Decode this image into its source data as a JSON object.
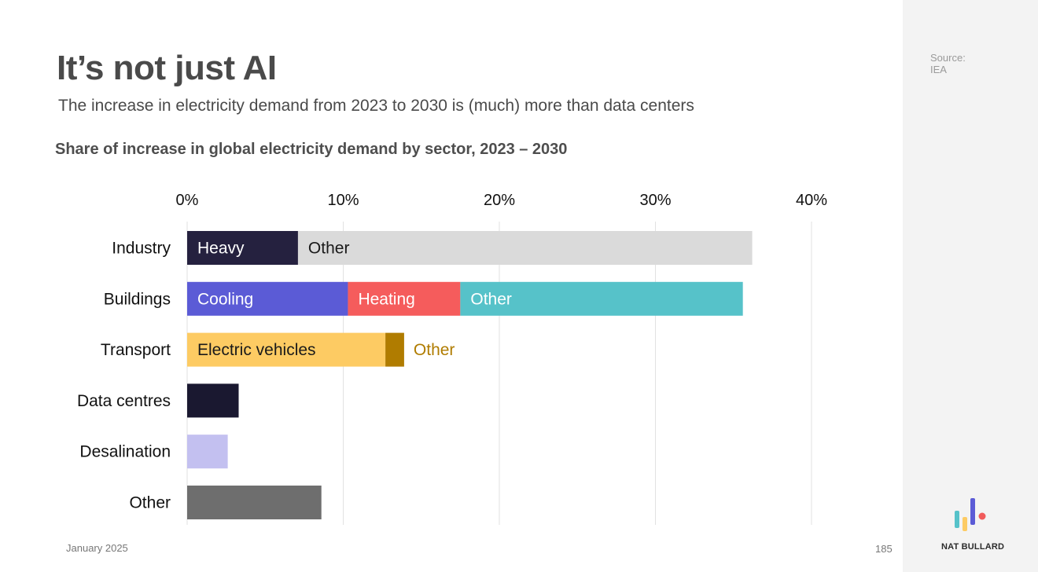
{
  "title": "It’s not just AI",
  "subtitle": "The increase in electricity demand from 2023 to 2030 is (much) more than data centers",
  "source": {
    "label": "Source:",
    "value": "IEA"
  },
  "footer": {
    "date": "January 2025",
    "page": "185"
  },
  "brand": "NAT BULLARD",
  "colors": {
    "text": "#4a4a4a",
    "grid": "#e2e2e2",
    "rail_bg": "#f3f3f3",
    "logo_blue": "#5b5bd6",
    "logo_teal": "#56c2c9",
    "logo_yellow": "#fdcb63",
    "logo_red": "#f15b5b"
  },
  "chart_data": {
    "type": "bar",
    "orientation": "horizontal",
    "stacked": true,
    "title": "Share of increase in global electricity demand by sector, 2023 – 2030",
    "xlabel": "",
    "ylabel": "",
    "xlim": [
      0,
      40
    ],
    "ticks": [
      0,
      10,
      20,
      30,
      40
    ],
    "tick_format": "percent",
    "grid": true,
    "categories": [
      "Industry",
      "Buildings",
      "Transport",
      "Data centres",
      "Desalination",
      "Other"
    ],
    "rows": [
      {
        "category": "Industry",
        "segments": [
          {
            "label": "Heavy",
            "value": 7.1,
            "color": "#25213f",
            "text_color": "#ffffff",
            "label_position": "inside"
          },
          {
            "label": "Other",
            "value": 29.1,
            "color": "#dadada",
            "text_color": "#1a1a1a",
            "label_position": "inside"
          }
        ]
      },
      {
        "category": "Buildings",
        "segments": [
          {
            "label": "Cooling",
            "value": 10.3,
            "color": "#5b5bd6",
            "text_color": "#ffffff",
            "label_position": "inside"
          },
          {
            "label": "Heating",
            "value": 7.2,
            "color": "#f55c5c",
            "text_color": "#ffffff",
            "label_position": "inside"
          },
          {
            "label": "Other",
            "value": 18.1,
            "color": "#56c2c9",
            "text_color": "#ffffff",
            "label_position": "inside"
          }
        ]
      },
      {
        "category": "Transport",
        "segments": [
          {
            "label": "Electric vehicles",
            "value": 12.7,
            "color": "#fdcb63",
            "text_color": "#1a1a1a",
            "label_position": "inside"
          },
          {
            "label": "Other",
            "value": 1.2,
            "color": "#b07c00",
            "text_color": "#b07c00",
            "label_position": "outside"
          }
        ]
      },
      {
        "category": "Data centres",
        "segments": [
          {
            "label": "",
            "value": 3.3,
            "color": "#1a1830"
          }
        ]
      },
      {
        "category": "Desalination",
        "segments": [
          {
            "label": "",
            "value": 2.6,
            "color": "#c3c0f0"
          }
        ]
      },
      {
        "category": "Other",
        "segments": [
          {
            "label": "",
            "value": 8.6,
            "color": "#6e6e6e"
          }
        ]
      }
    ]
  }
}
